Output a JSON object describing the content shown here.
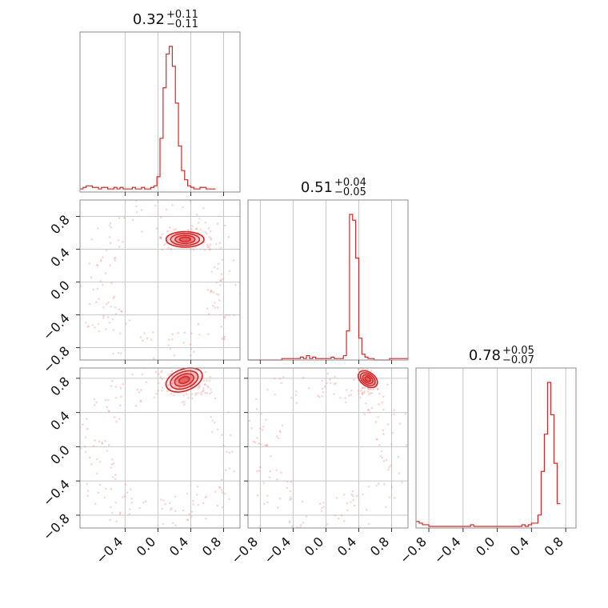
{
  "chart_data": {
    "type": "corner",
    "color": "#d62728",
    "parameters": [
      {
        "index": 0,
        "range": [
          -0.95,
          1.0
        ],
        "title": {
          "median": "0.32",
          "plus": "+0.11",
          "minus": "−0.11"
        }
      },
      {
        "index": 1,
        "range": [
          -0.95,
          1.0
        ],
        "title": {
          "median": "0.51",
          "plus": "+0.04",
          "minus": "−0.05"
        }
      },
      {
        "index": 2,
        "range": [
          -0.95,
          0.92
        ],
        "title": {
          "median": "0.78",
          "plus": "+0.05",
          "minus": "−0.07"
        }
      }
    ],
    "ticks": {
      "p0_bottom": [
        -0.4,
        0.0,
        0.4,
        0.8
      ],
      "p1_bottom": [
        -0.8,
        -0.4,
        0.0,
        0.4,
        0.8
      ],
      "p2_bottom": [
        -0.8,
        -0.4,
        0.0,
        0.4,
        0.8
      ],
      "p1_left": [
        -0.8,
        -0.4,
        0.0,
        0.4,
        0.8
      ],
      "p2_left": [
        -0.8,
        -0.4,
        0.0,
        0.4,
        0.8
      ]
    },
    "tick_labels": {
      "p0_bottom": [
        "−0.4",
        "0.0",
        "0.4",
        "0.8"
      ],
      "p1_bottom": [
        "−0.8",
        "−0.4",
        "0.0",
        "0.4",
        "0.8"
      ],
      "p2_bottom": [
        "−0.8",
        "−0.4",
        "0.0",
        "0.4",
        "0.8"
      ],
      "p1_left": [
        "−0.8",
        "−0.4",
        "0.0",
        "0.4",
        "0.8"
      ],
      "p2_left": [
        "−0.8",
        "−0.4",
        "0.0",
        "0.4",
        "0.8"
      ]
    },
    "histograms": [
      {
        "param": 0,
        "bin_start": -0.95,
        "bin_width": 0.0375,
        "counts": [
          2,
          3,
          4,
          4,
          3,
          3,
          2,
          3,
          3,
          2,
          2,
          3,
          2,
          3,
          2,
          2,
          2,
          3,
          2,
          2,
          3,
          2,
          2,
          3,
          4,
          10,
          35,
          68,
          90,
          95,
          82,
          58,
          30,
          14,
          8,
          4,
          3,
          2,
          2,
          3,
          3,
          2,
          2,
          2
        ]
      },
      {
        "param": 1,
        "bin_start": -0.95,
        "bin_width": 0.0375,
        "counts": [
          0,
          0,
          0,
          0,
          0,
          0,
          0,
          0,
          0,
          0,
          0,
          1,
          1,
          1,
          1,
          1,
          1,
          2,
          1,
          3,
          1,
          2,
          1,
          1,
          1,
          1,
          1,
          2,
          1,
          1,
          1,
          3,
          20,
          100,
          96,
          70,
          15,
          4,
          2,
          1,
          1,
          0,
          0,
          0,
          0,
          0,
          1,
          1,
          1,
          1,
          1,
          1,
          1
        ]
      },
      {
        "param": 2,
        "bin_start": -0.95,
        "bin_width": 0.0375,
        "counts": [
          4,
          3,
          2,
          2,
          1,
          1,
          1,
          1,
          1,
          1,
          1,
          1,
          1,
          1,
          1,
          1,
          1,
          2,
          1,
          1,
          1,
          1,
          1,
          1,
          1,
          1,
          1,
          1,
          1,
          1,
          1,
          1,
          1,
          2,
          1,
          2,
          3,
          3,
          8,
          35,
          58,
          90,
          70,
          40,
          15
        ]
      }
    ],
    "contours_2d": [
      {
        "x_param": 0,
        "y_param": 1,
        "center": [
          0.33,
          0.52
        ],
        "sigma": [
          0.11,
          0.045
        ],
        "angle_deg": 0
      },
      {
        "x_param": 0,
        "y_param": 2,
        "center": [
          0.32,
          0.78
        ],
        "sigma": [
          0.11,
          0.06
        ],
        "angle_deg": -20
      },
      {
        "x_param": 1,
        "y_param": 2,
        "center": [
          0.51,
          0.79
        ],
        "sigma": [
          0.04,
          0.06
        ],
        "angle_deg": -55
      }
    ],
    "contour_levels_sigma": [
      0.6,
      1.1,
      1.6,
      2.1
    ]
  }
}
